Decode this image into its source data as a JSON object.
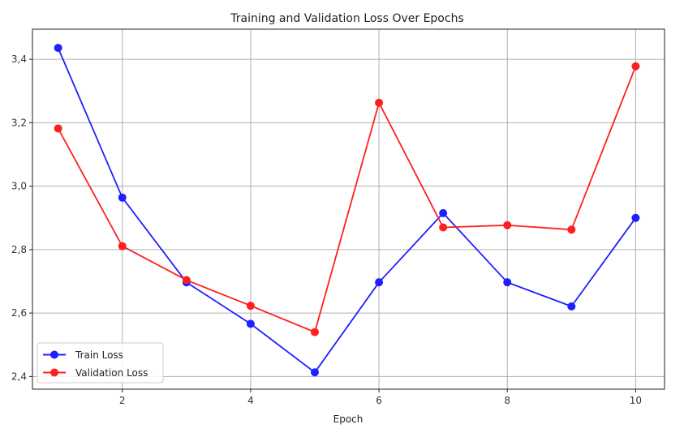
{
  "chart_data": {
    "type": "line",
    "title": "Training and Validation Loss Over Epochs",
    "xlabel": "Epoch",
    "ylabel": "",
    "x": [
      1,
      2,
      3,
      4,
      5,
      6,
      7,
      8,
      9,
      10
    ],
    "xlim": [
      0.6,
      10.45
    ],
    "ylim": [
      2.36,
      3.495
    ],
    "xticks": [
      2,
      4,
      6,
      8,
      10
    ],
    "yticks": [
      2.4,
      2.6,
      2.8,
      3.0,
      3.2,
      3.4
    ],
    "xtick_labels": [
      "2",
      "4",
      "6",
      "8",
      "10"
    ],
    "ytick_labels": [
      "2,4",
      "2,6",
      "2,8",
      "3,0",
      "3,2",
      "3,4"
    ],
    "grid": true,
    "legend_position": "lower-left",
    "series": [
      {
        "name": "Train Loss",
        "color": "#1f1fff",
        "marker": "circle",
        "values": [
          3.436,
          2.964,
          2.697,
          2.566,
          2.413,
          2.697,
          2.915,
          2.697,
          2.621,
          2.9
        ]
      },
      {
        "name": "Validation Loss",
        "color": "#ff1f1f",
        "marker": "circle",
        "values": [
          3.182,
          2.811,
          2.704,
          2.623,
          2.54,
          3.263,
          2.87,
          2.877,
          2.863,
          3.378
        ]
      }
    ]
  }
}
